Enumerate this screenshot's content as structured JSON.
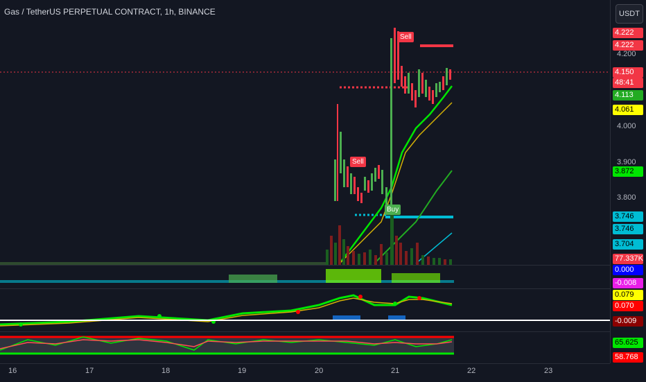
{
  "header": {
    "title": "Gas / TetherUS PERPETUAL CONTRACT, 1h, BINANCE"
  },
  "toolbar": {
    "currency_label": "USDT"
  },
  "price_axis": {
    "ticks": [
      "4.200",
      "4.000",
      "3.900",
      "3.800"
    ],
    "labels": [
      {
        "text": "4.222",
        "bg": "#f23645",
        "fg": "#ffffff"
      },
      {
        "text": "4.222",
        "bg": "#f23645",
        "fg": "#ffffff"
      },
      {
        "text": "4.150",
        "bg": "#f23645",
        "fg": "#ffffff"
      },
      {
        "text": "48:41",
        "bg": "#f23645",
        "fg": "#ffffff"
      },
      {
        "text": "4.113",
        "bg": "#22ab22",
        "fg": "#ffffff"
      },
      {
        "text": "4.061",
        "bg": "#ffff00",
        "fg": "#000000"
      },
      {
        "text": "3.872",
        "bg": "#00e600",
        "fg": "#000000"
      },
      {
        "text": "3.746",
        "bg": "#00bcd4",
        "fg": "#000000"
      },
      {
        "text": "3.746",
        "bg": "#00bcd4",
        "fg": "#000000"
      },
      {
        "text": "3.704",
        "bg": "#00bcd4",
        "fg": "#000000"
      },
      {
        "text": "77.337K",
        "bg": "#f23645",
        "fg": "#ffffff"
      },
      {
        "text": "0.000",
        "bg": "#0000ff",
        "fg": "#ffffff"
      },
      {
        "text": "-0.008",
        "bg": "#e91ee9",
        "fg": "#ffffff"
      },
      {
        "text": "0.079",
        "bg": "#ffff00",
        "fg": "#000000"
      },
      {
        "text": "0.070",
        "bg": "#ff0000",
        "fg": "#ffffff"
      },
      {
        "text": "-0.009",
        "bg": "#8b0000",
        "fg": "#ffffff"
      },
      {
        "text": "65.625",
        "bg": "#00e600",
        "fg": "#000000"
      },
      {
        "text": "58.768",
        "bg": "#ff0000",
        "fg": "#ffffff"
      }
    ]
  },
  "time_axis": {
    "labels": [
      "16",
      "17",
      "18",
      "19",
      "20",
      "21",
      "22",
      "23"
    ]
  },
  "signals": {
    "sell": "Sell",
    "buy": "Buy"
  },
  "colors": {
    "up": "#4caf50",
    "down": "#f23645",
    "background": "#131722"
  }
}
